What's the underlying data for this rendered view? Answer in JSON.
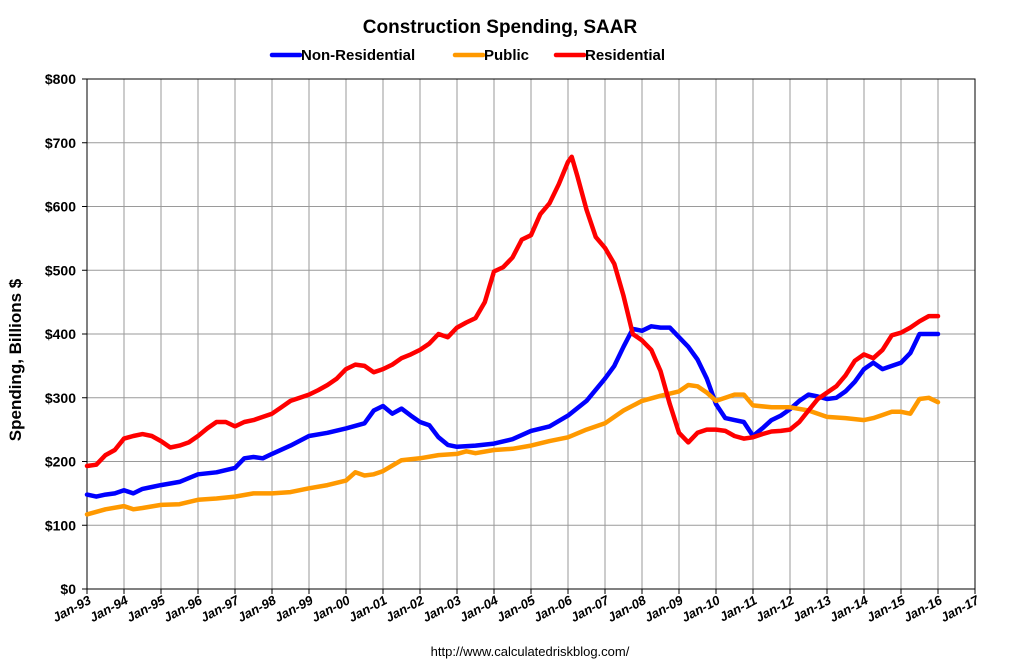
{
  "chart_data": {
    "type": "line",
    "title": "Construction Spending, SAAR",
    "ylabel": "Spending, Billions $",
    "xlabel": "",
    "source": "http://www.calculatedriskblog.com/",
    "ylim": [
      0,
      800
    ],
    "xlim": [
      1993,
      2017
    ],
    "grid": true,
    "legend_position": "top-center",
    "yticks": [
      "$0",
      "$100",
      "$200",
      "$300",
      "$400",
      "$500",
      "$600",
      "$700",
      "$800"
    ],
    "xticks": [
      "Jan-93",
      "Jan-94",
      "Jan-95",
      "Jan-96",
      "Jan-97",
      "Jan-98",
      "Jan-99",
      "Jan-00",
      "Jan-01",
      "Jan-02",
      "Jan-03",
      "Jan-04",
      "Jan-05",
      "Jan-06",
      "Jan-07",
      "Jan-08",
      "Jan-09",
      "Jan-10",
      "Jan-11",
      "Jan-12",
      "Jan-13",
      "Jan-14",
      "Jan-15",
      "Jan-16",
      "Jan-17"
    ],
    "series": [
      {
        "name": "Non-Residential",
        "color": "#0000ff",
        "points": [
          [
            1993.0,
            148
          ],
          [
            1993.25,
            145
          ],
          [
            1993.5,
            148
          ],
          [
            1993.75,
            150
          ],
          [
            1994.0,
            155
          ],
          [
            1994.25,
            150
          ],
          [
            1994.5,
            157
          ],
          [
            1994.75,
            160
          ],
          [
            1995.0,
            163
          ],
          [
            1995.5,
            168
          ],
          [
            1996.0,
            180
          ],
          [
            1996.5,
            183
          ],
          [
            1997.0,
            190
          ],
          [
            1997.25,
            205
          ],
          [
            1997.5,
            207
          ],
          [
            1997.75,
            205
          ],
          [
            1998.0,
            212
          ],
          [
            1998.5,
            225
          ],
          [
            1999.0,
            240
          ],
          [
            1999.5,
            245
          ],
          [
            2000.0,
            252
          ],
          [
            2000.5,
            260
          ],
          [
            2000.75,
            280
          ],
          [
            2001.0,
            287
          ],
          [
            2001.25,
            275
          ],
          [
            2001.5,
            283
          ],
          [
            2001.75,
            272
          ],
          [
            2002.0,
            262
          ],
          [
            2002.25,
            257
          ],
          [
            2002.5,
            238
          ],
          [
            2002.75,
            226
          ],
          [
            2003.0,
            223
          ],
          [
            2003.5,
            225
          ],
          [
            2004.0,
            228
          ],
          [
            2004.5,
            235
          ],
          [
            2005.0,
            248
          ],
          [
            2005.5,
            255
          ],
          [
            2006.0,
            272
          ],
          [
            2006.5,
            295
          ],
          [
            2007.0,
            330
          ],
          [
            2007.25,
            350
          ],
          [
            2007.5,
            380
          ],
          [
            2007.75,
            408
          ],
          [
            2008.0,
            405
          ],
          [
            2008.25,
            412
          ],
          [
            2008.5,
            410
          ],
          [
            2008.75,
            410
          ],
          [
            2009.0,
            395
          ],
          [
            2009.25,
            380
          ],
          [
            2009.5,
            360
          ],
          [
            2009.75,
            330
          ],
          [
            2010.0,
            290
          ],
          [
            2010.25,
            268
          ],
          [
            2010.5,
            265
          ],
          [
            2010.75,
            262
          ],
          [
            2011.0,
            240
          ],
          [
            2011.25,
            252
          ],
          [
            2011.5,
            265
          ],
          [
            2011.75,
            272
          ],
          [
            2012.0,
            282
          ],
          [
            2012.25,
            295
          ],
          [
            2012.5,
            305
          ],
          [
            2012.75,
            302
          ],
          [
            2013.0,
            298
          ],
          [
            2013.25,
            300
          ],
          [
            2013.5,
            310
          ],
          [
            2013.75,
            325
          ],
          [
            2014.0,
            345
          ],
          [
            2014.25,
            355
          ],
          [
            2014.5,
            345
          ],
          [
            2014.75,
            350
          ],
          [
            2015.0,
            355
          ],
          [
            2015.25,
            370
          ],
          [
            2015.5,
            400
          ],
          [
            2015.75,
            400
          ],
          [
            2016.0,
            400
          ]
        ]
      },
      {
        "name": "Public",
        "color": "#ff9900",
        "points": [
          [
            1993.0,
            117
          ],
          [
            1993.5,
            125
          ],
          [
            1994.0,
            130
          ],
          [
            1994.25,
            125
          ],
          [
            1994.5,
            127
          ],
          [
            1995.0,
            132
          ],
          [
            1995.5,
            133
          ],
          [
            1996.0,
            140
          ],
          [
            1996.5,
            142
          ],
          [
            1997.0,
            145
          ],
          [
            1997.5,
            150
          ],
          [
            1998.0,
            150
          ],
          [
            1998.5,
            152
          ],
          [
            1999.0,
            158
          ],
          [
            1999.5,
            163
          ],
          [
            2000.0,
            170
          ],
          [
            2000.25,
            183
          ],
          [
            2000.5,
            178
          ],
          [
            2000.75,
            180
          ],
          [
            2001.0,
            185
          ],
          [
            2001.5,
            202
          ],
          [
            2002.0,
            205
          ],
          [
            2002.5,
            210
          ],
          [
            2003.0,
            212
          ],
          [
            2003.25,
            216
          ],
          [
            2003.5,
            213
          ],
          [
            2004.0,
            218
          ],
          [
            2004.5,
            220
          ],
          [
            2005.0,
            225
          ],
          [
            2005.5,
            232
          ],
          [
            2006.0,
            238
          ],
          [
            2006.5,
            250
          ],
          [
            2007.0,
            260
          ],
          [
            2007.5,
            280
          ],
          [
            2008.0,
            295
          ],
          [
            2008.5,
            303
          ],
          [
            2009.0,
            310
          ],
          [
            2009.25,
            320
          ],
          [
            2009.5,
            318
          ],
          [
            2009.75,
            308
          ],
          [
            2010.0,
            295
          ],
          [
            2010.25,
            300
          ],
          [
            2010.5,
            305
          ],
          [
            2010.75,
            305
          ],
          [
            2011.0,
            288
          ],
          [
            2011.5,
            285
          ],
          [
            2012.0,
            285
          ],
          [
            2012.5,
            280
          ],
          [
            2013.0,
            270
          ],
          [
            2013.5,
            268
          ],
          [
            2014.0,
            265
          ],
          [
            2014.25,
            268
          ],
          [
            2014.5,
            273
          ],
          [
            2014.75,
            278
          ],
          [
            2015.0,
            278
          ],
          [
            2015.25,
            275
          ],
          [
            2015.5,
            298
          ],
          [
            2015.75,
            300
          ],
          [
            2016.0,
            293
          ]
        ]
      },
      {
        "name": "Residential",
        "color": "#ff0000",
        "points": [
          [
            1993.0,
            193
          ],
          [
            1993.25,
            195
          ],
          [
            1993.5,
            210
          ],
          [
            1993.75,
            218
          ],
          [
            1994.0,
            236
          ],
          [
            1994.25,
            240
          ],
          [
            1994.5,
            243
          ],
          [
            1994.75,
            240
          ],
          [
            1995.0,
            232
          ],
          [
            1995.25,
            222
          ],
          [
            1995.5,
            225
          ],
          [
            1995.75,
            230
          ],
          [
            1996.0,
            240
          ],
          [
            1996.25,
            252
          ],
          [
            1996.5,
            262
          ],
          [
            1996.75,
            262
          ],
          [
            1997.0,
            255
          ],
          [
            1997.25,
            262
          ],
          [
            1997.5,
            265
          ],
          [
            1997.75,
            270
          ],
          [
            1998.0,
            275
          ],
          [
            1998.25,
            285
          ],
          [
            1998.5,
            295
          ],
          [
            1998.75,
            300
          ],
          [
            1999.0,
            305
          ],
          [
            1999.25,
            312
          ],
          [
            1999.5,
            320
          ],
          [
            1999.75,
            330
          ],
          [
            2000.0,
            345
          ],
          [
            2000.25,
            352
          ],
          [
            2000.5,
            350
          ],
          [
            2000.75,
            340
          ],
          [
            2001.0,
            345
          ],
          [
            2001.25,
            352
          ],
          [
            2001.5,
            362
          ],
          [
            2001.75,
            368
          ],
          [
            2002.0,
            375
          ],
          [
            2002.25,
            385
          ],
          [
            2002.5,
            400
          ],
          [
            2002.75,
            395
          ],
          [
            2003.0,
            410
          ],
          [
            2003.25,
            418
          ],
          [
            2003.5,
            425
          ],
          [
            2003.75,
            450
          ],
          [
            2004.0,
            498
          ],
          [
            2004.25,
            505
          ],
          [
            2004.5,
            520
          ],
          [
            2004.75,
            548
          ],
          [
            2005.0,
            555
          ],
          [
            2005.25,
            588
          ],
          [
            2005.5,
            605
          ],
          [
            2005.75,
            635
          ],
          [
            2006.0,
            670
          ],
          [
            2006.1,
            678
          ],
          [
            2006.25,
            648
          ],
          [
            2006.5,
            595
          ],
          [
            2006.75,
            552
          ],
          [
            2007.0,
            535
          ],
          [
            2007.25,
            510
          ],
          [
            2007.5,
            460
          ],
          [
            2007.75,
            400
          ],
          [
            2008.0,
            390
          ],
          [
            2008.25,
            375
          ],
          [
            2008.5,
            342
          ],
          [
            2008.75,
            290
          ],
          [
            2009.0,
            245
          ],
          [
            2009.25,
            230
          ],
          [
            2009.5,
            245
          ],
          [
            2009.75,
            250
          ],
          [
            2010.0,
            250
          ],
          [
            2010.25,
            248
          ],
          [
            2010.5,
            240
          ],
          [
            2010.75,
            236
          ],
          [
            2011.0,
            238
          ],
          [
            2011.25,
            243
          ],
          [
            2011.5,
            247
          ],
          [
            2011.75,
            248
          ],
          [
            2012.0,
            250
          ],
          [
            2012.25,
            262
          ],
          [
            2012.5,
            280
          ],
          [
            2012.75,
            298
          ],
          [
            2013.0,
            308
          ],
          [
            2013.25,
            318
          ],
          [
            2013.5,
            335
          ],
          [
            2013.75,
            358
          ],
          [
            2014.0,
            368
          ],
          [
            2014.25,
            362
          ],
          [
            2014.5,
            375
          ],
          [
            2014.75,
            398
          ],
          [
            2015.0,
            402
          ],
          [
            2015.25,
            410
          ],
          [
            2015.5,
            420
          ],
          [
            2015.75,
            428
          ],
          [
            2016.0,
            428
          ]
        ]
      }
    ]
  }
}
